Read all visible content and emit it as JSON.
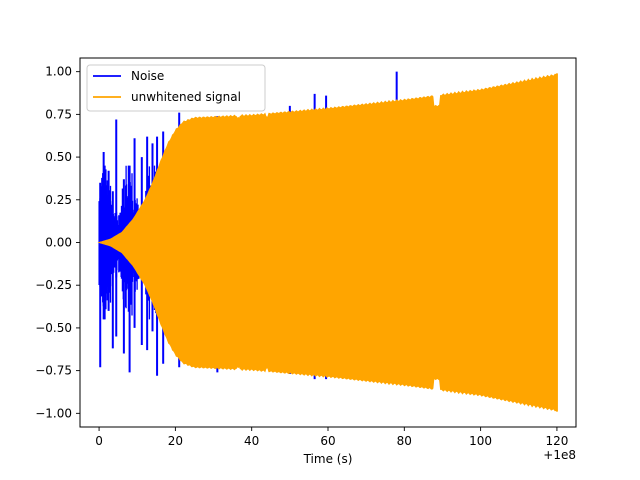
{
  "chart_data": {
    "type": "line",
    "title": "",
    "xlabel": "Time (s)",
    "ylabel": "",
    "x_offset_label": "+1e8",
    "xlim": [
      -5,
      125
    ],
    "ylim": [
      -1.08,
      1.08
    ],
    "x_ticks": [
      0,
      20,
      40,
      60,
      80,
      100,
      120
    ],
    "x_tick_labels": [
      "0",
      "20",
      "40",
      "60",
      "80",
      "100",
      "120"
    ],
    "y_ticks": [
      1.0,
      0.75,
      0.5,
      0.25,
      0.0,
      -0.25,
      -0.5,
      -0.75,
      -1.0
    ],
    "y_tick_labels": [
      "1.00",
      "0.75",
      "0.50",
      "0.25",
      "0.00",
      "−0.25",
      "−0.50",
      "−0.75",
      "−1.00"
    ],
    "grid": false,
    "legend_position": "top-left",
    "series": [
      {
        "name": "Noise",
        "color": "#0000ff",
        "spikes": [
          {
            "x": 0.3,
            "upper": 0.35,
            "lower": -0.73
          },
          {
            "x": 1.2,
            "upper": 0.53,
            "lower": -0.45
          },
          {
            "x": 2.5,
            "upper": 0.42,
            "lower": -0.4
          },
          {
            "x": 3.6,
            "upper": 0.3,
            "lower": -0.62
          },
          {
            "x": 4.5,
            "upper": 0.72,
            "lower": -0.55
          },
          {
            "x": 6.5,
            "upper": 0.37,
            "lower": -0.65
          },
          {
            "x": 8.0,
            "upper": 0.45,
            "lower": -0.76
          },
          {
            "x": 9.3,
            "upper": 0.61,
            "lower": -0.5
          },
          {
            "x": 11.2,
            "upper": 0.5,
            "lower": -0.6
          },
          {
            "x": 12.6,
            "upper": 0.62,
            "lower": -0.63
          },
          {
            "x": 14.0,
            "upper": 0.58,
            "lower": -0.52
          },
          {
            "x": 15.2,
            "upper": 0.62,
            "lower": -0.78
          },
          {
            "x": 16.8,
            "upper": 0.65,
            "lower": -0.71
          },
          {
            "x": 21.0,
            "upper": 0.76,
            "lower": -0.73
          },
          {
            "x": 31.0,
            "upper": 0.74,
            "lower": -0.76
          },
          {
            "x": 50.0,
            "upper": 0.8,
            "lower": -0.77
          },
          {
            "x": 56.5,
            "upper": 0.87,
            "lower": -0.8
          },
          {
            "x": 59.5,
            "upper": 0.86,
            "lower": -0.8
          },
          {
            "x": 78.0,
            "upper": 1.0,
            "lower": -0.8
          }
        ]
      },
      {
        "name": "unwhitened signal",
        "color": "#ffa500",
        "envelope": [
          [
            0,
            0.0
          ],
          [
            3,
            0.02
          ],
          [
            6,
            0.06
          ],
          [
            9,
            0.14
          ],
          [
            12,
            0.25
          ],
          [
            14,
            0.35
          ],
          [
            16,
            0.47
          ],
          [
            18,
            0.58
          ],
          [
            20,
            0.66
          ],
          [
            22,
            0.71
          ],
          [
            25,
            0.735
          ],
          [
            30,
            0.74
          ],
          [
            40,
            0.75
          ],
          [
            60,
            0.79
          ],
          [
            80,
            0.84
          ],
          [
            100,
            0.9
          ],
          [
            120,
            0.99
          ]
        ]
      }
    ]
  }
}
